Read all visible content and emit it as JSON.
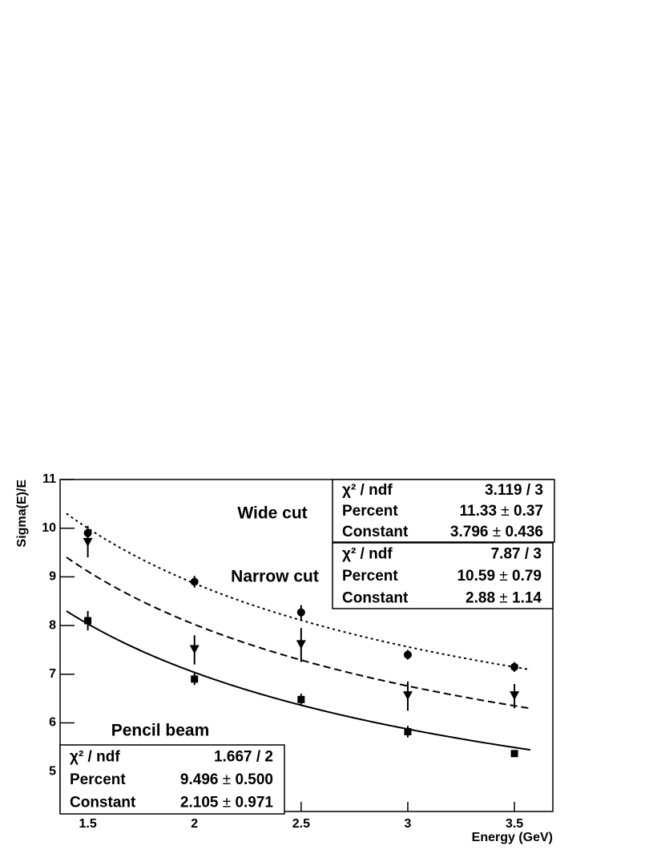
{
  "chart_data": {
    "type": "scatter",
    "x_label": "Energy (GeV)",
    "y_label": "Sigma(E)/E",
    "xlim": [
      1.37,
      3.68
    ],
    "ylim": [
      4.18,
      11
    ],
    "xticks": [
      1.5,
      2,
      2.5,
      3,
      3.5
    ],
    "yticks": [
      5,
      6,
      7,
      8,
      9,
      10,
      11
    ],
    "x": [
      1.5,
      2,
      2.5,
      3,
      3.5
    ],
    "series": [
      {
        "name": "Wide cut",
        "marker": "circle",
        "line": "dotted",
        "values": [
          9.9,
          8.9,
          8.27,
          7.4,
          7.15
        ],
        "errors": [
          0.15,
          0.12,
          0.15,
          0.1,
          0.1
        ],
        "fit": {
          "chi2_label": "χ² / ndf",
          "chi2_ndf": "3.119 / 3",
          "params": [
            {
              "name": "Percent",
              "value": 11.33,
              "error": 0.37
            },
            {
              "name": "Constant",
              "value": 3.796,
              "error": 0.436
            }
          ]
        }
      },
      {
        "name": "Narrow cut",
        "marker": "triangle-down",
        "line": "dashed",
        "values": [
          9.7,
          7.5,
          7.6,
          6.55,
          6.55
        ],
        "errors": [
          0.3,
          0.3,
          0.35,
          0.3,
          0.25
        ],
        "fit": {
          "chi2_label": "χ² / ndf",
          "chi2_ndf": "7.87 / 3",
          "params": [
            {
              "name": "Percent",
              "value": 10.59,
              "error": 0.79
            },
            {
              "name": "Constant",
              "value": 2.88,
              "error": 1.14
            }
          ]
        }
      },
      {
        "name": "Pencil beam",
        "marker": "square",
        "line": "solid",
        "values": [
          8.1,
          6.9,
          6.48,
          5.82,
          5.37
        ],
        "errors": [
          0.2,
          0.12,
          0.12,
          0.12,
          null
        ],
        "fit": {
          "chi2_label": "χ² / ndf",
          "chi2_ndf": "1.667 / 2",
          "params": [
            {
              "name": "Percent",
              "value": 9.496,
              "error": {
                "value": 0.5,
                "label": "0.500"
              }
            },
            {
              "name": "Constant",
              "value": 2.105,
              "error": 0.971
            }
          ]
        }
      }
    ]
  }
}
